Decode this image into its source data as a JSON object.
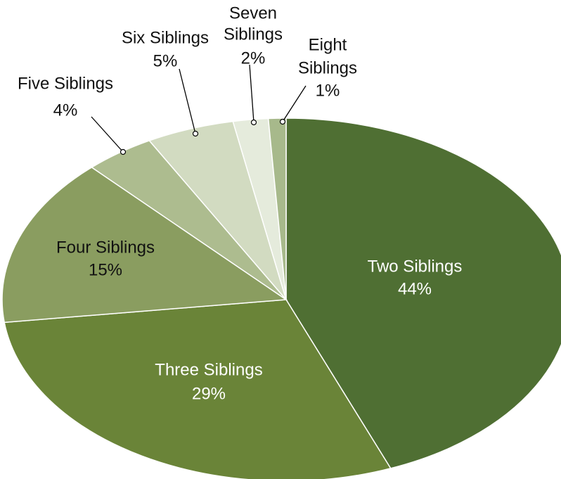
{
  "chart_data": {
    "type": "pie",
    "title": "",
    "slices": [
      {
        "label": "Two Siblings",
        "percent_label": "44%",
        "value": 44,
        "color": "#4f6f33",
        "text_color": "#ffffff"
      },
      {
        "label": "Three Siblings",
        "percent_label": "29%",
        "value": 29,
        "color": "#6a8438",
        "text_color": "#ffffff"
      },
      {
        "label": "Four Siblings",
        "percent_label": "15%",
        "value": 15,
        "color": "#8a9d60",
        "text_color": "#111111"
      },
      {
        "label": "Five Siblings",
        "percent_label": "4%",
        "value": 4,
        "color": "#adbc8f",
        "text_color": "#111111"
      },
      {
        "label": "Six Siblings",
        "percent_label": "5%",
        "value": 5,
        "color": "#d2dbc1",
        "text_color": "#111111"
      },
      {
        "label": "Seven Siblings",
        "percent_label": "2%",
        "value": 2,
        "color": "#e5ebdc",
        "text_color": "#111111"
      },
      {
        "label": "Eight Siblings",
        "percent_label": "1%",
        "value": 1,
        "color": "#a7b98b",
        "text_color": "#111111"
      }
    ]
  }
}
